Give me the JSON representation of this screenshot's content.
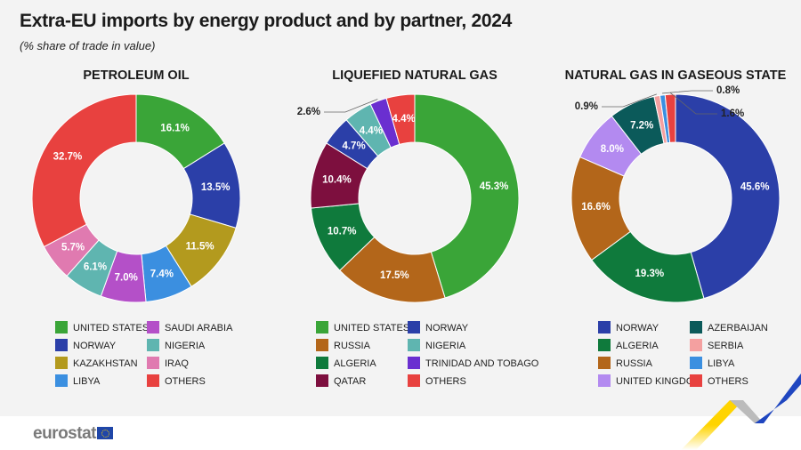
{
  "title": "Extra-EU imports by energy product and by partner, 2024",
  "subtitle": "(% share of trade in value)",
  "logo": "eurostat",
  "colors": {
    "UNITED STATES": "#3aa538",
    "NORWAY": "#2b3fa8",
    "KAZAKHSTAN": "#b39a1e",
    "LIBYA": "#3b8fe0",
    "SAUDI ARABIA": "#b450c8",
    "NIGERIA": "#5fb5b0",
    "IRAQ": "#e07ab0",
    "OTHERS": "#e8413f",
    "RUSSIA": "#b3661a",
    "ALGERIA": "#0f7a3c",
    "QATAR": "#7d0f3e",
    "TRINIDAD AND TOBAGO": "#6a2fd0",
    "AZERBAIJAN": "#0b5a5a",
    "SERBIA": "#f4a0a0",
    "UNITED KINGDOM": "#b38af0"
  },
  "chart_data": [
    {
      "type": "pie",
      "donut": true,
      "title": "PETROLEUM OIL",
      "unit": "%",
      "categories": [
        "UNITED STATES",
        "NORWAY",
        "KAZAKHSTAN",
        "LIBYA",
        "SAUDI ARABIA",
        "NIGERIA",
        "IRAQ",
        "OTHERS"
      ],
      "values": [
        16.1,
        13.5,
        11.5,
        7.4,
        7.0,
        6.1,
        5.7,
        32.7
      ],
      "legend": [
        "UNITED STATES",
        "NORWAY",
        "KAZAKHSTAN",
        "LIBYA",
        "SAUDI ARABIA",
        "NIGERIA",
        "IRAQ",
        "OTHERS"
      ]
    },
    {
      "type": "pie",
      "donut": true,
      "title": "LIQUEFIED NATURAL GAS",
      "unit": "%",
      "categories": [
        "UNITED STATES",
        "RUSSIA",
        "ALGERIA",
        "QATAR",
        "NORWAY",
        "NIGERIA",
        "TRINIDAD AND TOBAGO",
        "OTHERS"
      ],
      "values": [
        45.3,
        17.5,
        10.7,
        10.4,
        4.7,
        4.4,
        2.6,
        4.4
      ],
      "legend": [
        "UNITED STATES",
        "RUSSIA",
        "ALGERIA",
        "QATAR",
        "NORWAY",
        "NIGERIA",
        "TRINIDAD AND TOBAGO",
        "OTHERS"
      ]
    },
    {
      "type": "pie",
      "donut": true,
      "title": "NATURAL GAS IN GASEOUS STATE",
      "unit": "%",
      "categories": [
        "NORWAY",
        "ALGERIA",
        "RUSSIA",
        "UNITED KINGDOM",
        "AZERBAIJAN",
        "SERBIA",
        "LIBYA",
        "OTHERS"
      ],
      "values": [
        45.6,
        19.3,
        16.6,
        8.0,
        7.2,
        0.9,
        0.8,
        1.6
      ],
      "legend": [
        "NORWAY",
        "ALGERIA",
        "RUSSIA",
        "UNITED KINGDOM",
        "AZERBAIJAN",
        "SERBIA",
        "LIBYA",
        "OTHERS"
      ]
    }
  ]
}
